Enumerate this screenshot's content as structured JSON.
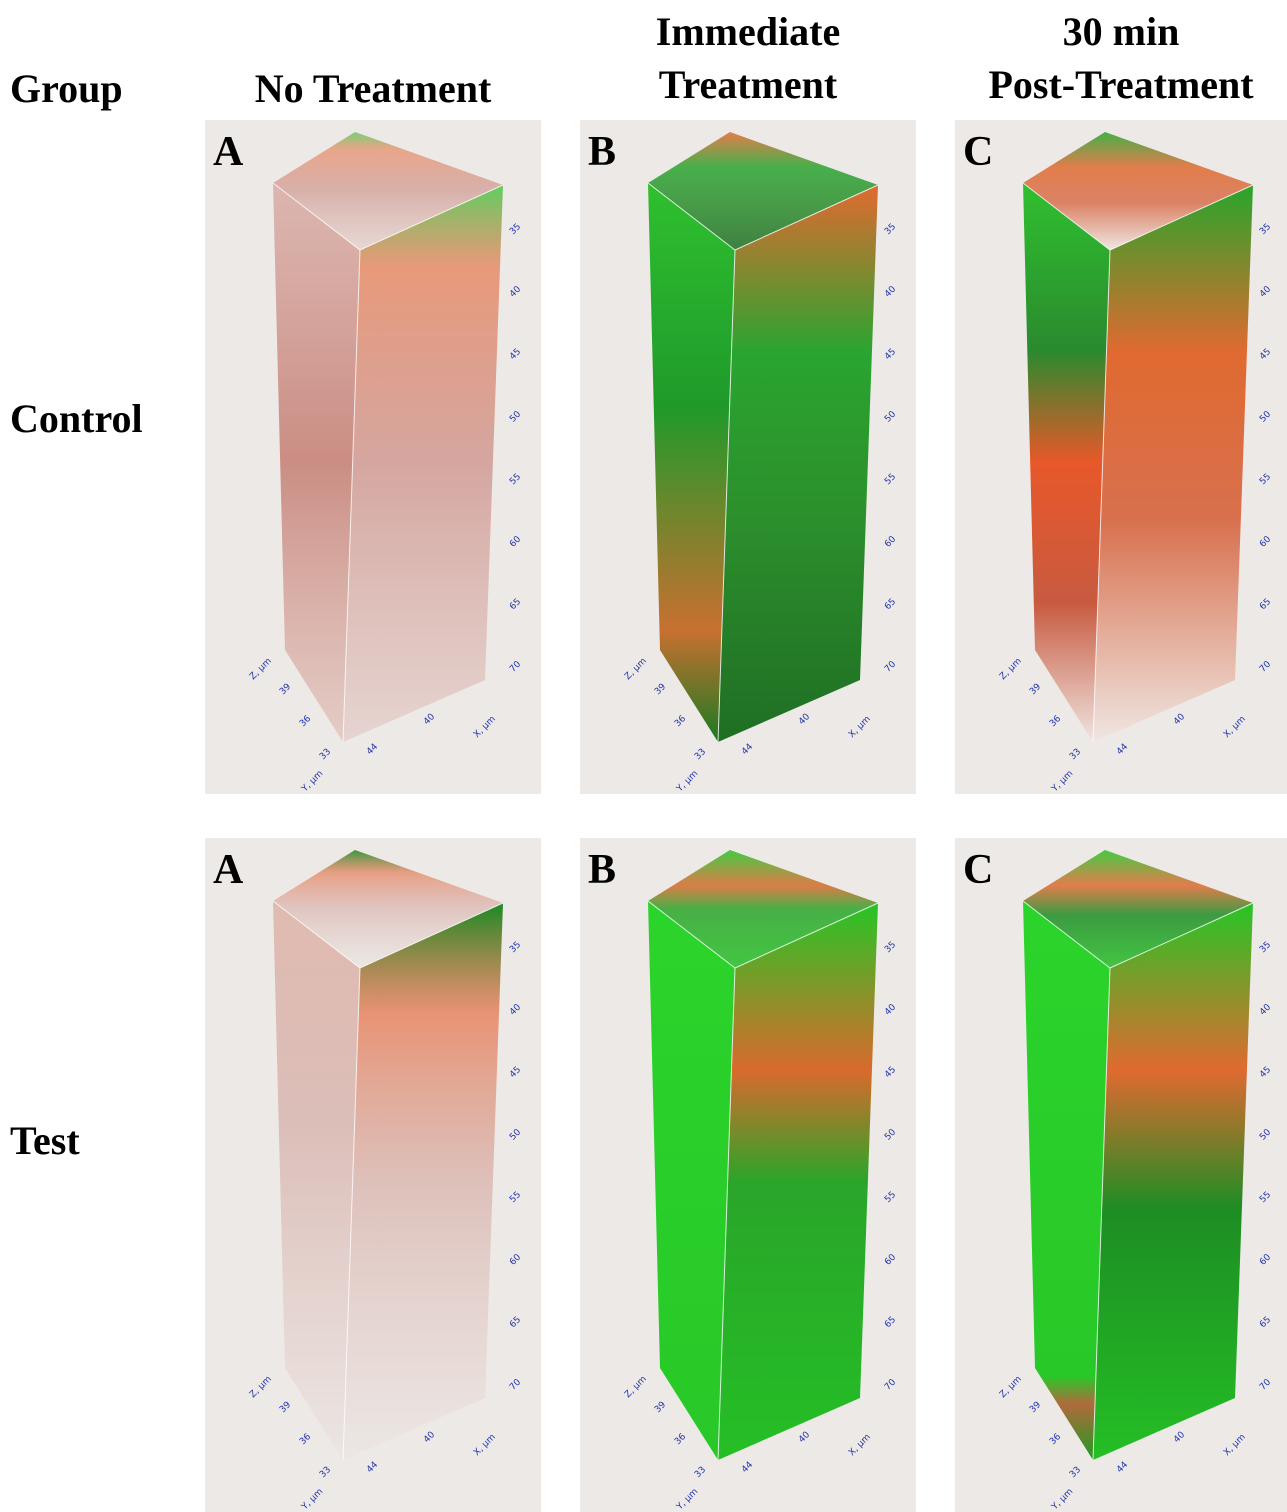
{
  "header": {
    "group": "Group",
    "columns": [
      [
        "No Treatment"
      ],
      [
        "Immediate",
        "Treatment"
      ],
      [
        "30 min",
        "Post-Treatment"
      ]
    ]
  },
  "rows": [
    {
      "label": "Control",
      "panels": [
        {
          "letter": "A"
        },
        {
          "letter": "B"
        },
        {
          "letter": "C"
        }
      ]
    },
    {
      "label": "Test",
      "panels": [
        {
          "letter": "A"
        },
        {
          "letter": "B"
        },
        {
          "letter": "C"
        }
      ]
    }
  ],
  "axes": {
    "z_label": "Z, µm",
    "y_label": "Y, µm",
    "x_label": "X, µm",
    "depth_ticks": [
      "35",
      "40",
      "45",
      "50",
      "55",
      "60",
      "65",
      "70"
    ],
    "y_ticks": [
      "39",
      "36",
      "33"
    ],
    "x_ticks": [
      "44",
      "40"
    ]
  }
}
